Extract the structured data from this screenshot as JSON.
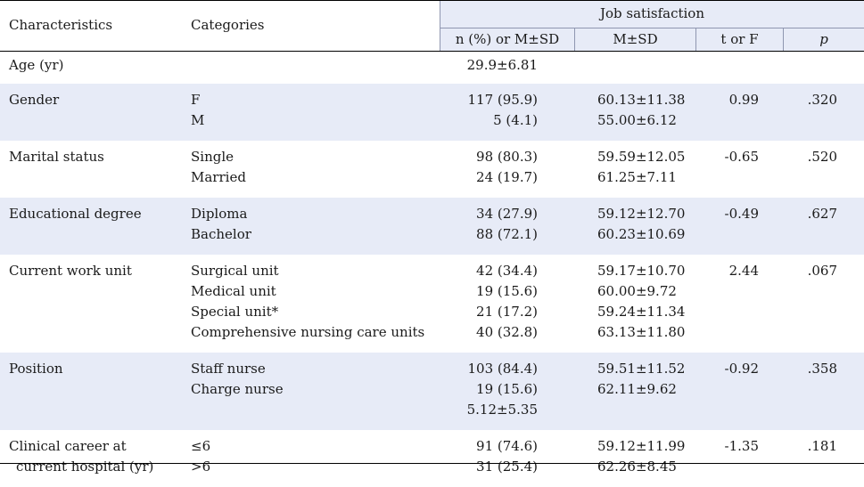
{
  "header": {
    "characteristics": "Characteristics",
    "categories": "Categories",
    "group_title": "Job satisfaction",
    "col_n": "n (%) or M±SD",
    "col_m": "M±SD",
    "col_t": "t or F",
    "col_p": "p"
  },
  "rows": [
    {
      "characteristic": "Age (yr)",
      "characteristic2": "",
      "categories": [
        ""
      ],
      "n": [
        "29.9±6.81"
      ],
      "m": [
        ""
      ],
      "t": "",
      "p": "",
      "shaded": false
    },
    {
      "characteristic": "Gender",
      "characteristic2": "",
      "categories": [
        "F",
        "M"
      ],
      "n": [
        "117 (95.9)",
        "5 (4.1)"
      ],
      "m": [
        "60.13±11.38",
        "55.00±6.12"
      ],
      "t": "0.99",
      "p": ".320",
      "shaded": true
    },
    {
      "characteristic": "Marital status",
      "characteristic2": "",
      "categories": [
        "Single",
        "Married"
      ],
      "n": [
        "98 (80.3)",
        "24 (19.7)"
      ],
      "m": [
        "59.59±12.05",
        "61.25±7.11"
      ],
      "t": "-0.65",
      "p": ".520",
      "shaded": false
    },
    {
      "characteristic": "Educational degree",
      "characteristic2": "",
      "categories": [
        "Diploma",
        "Bachelor"
      ],
      "n": [
        "34 (27.9)",
        "88 (72.1)"
      ],
      "m": [
        "59.12±12.70",
        "60.23±10.69"
      ],
      "t": "-0.49",
      "p": ".627",
      "shaded": true
    },
    {
      "characteristic": "Current work unit",
      "characteristic2": "",
      "categories": [
        "Surgical unit",
        "Medical unit",
        "Special unit*",
        "Comprehensive nursing care units"
      ],
      "n": [
        "42 (34.4)",
        "19 (15.6)",
        "21 (17.2)",
        "40 (32.8)"
      ],
      "m": [
        "59.17±10.70",
        "60.00±9.72",
        "59.24±11.34",
        "63.13±11.80"
      ],
      "t": "2.44",
      "p": ".067",
      "shaded": false
    },
    {
      "characteristic": "Position",
      "characteristic2": "",
      "categories": [
        "Staff nurse",
        "Charge nurse",
        ""
      ],
      "n": [
        "103 (84.4)",
        "19 (15.6)",
        "5.12±5.35"
      ],
      "m": [
        "59.51±11.52",
        "62.11±9.62",
        ""
      ],
      "t": "-0.92",
      "p": ".358",
      "shaded": true
    },
    {
      "characteristic": "Clinical career at",
      "characteristic2": "current hospital (yr)",
      "categories": [
        "≤6",
        ">6"
      ],
      "n": [
        "91 (74.6)",
        "31 (25.4)"
      ],
      "m": [
        "59.12±11.99",
        "62.26±8.45"
      ],
      "t": "-1.35",
      "p": ".181",
      "shaded": false
    }
  ]
}
